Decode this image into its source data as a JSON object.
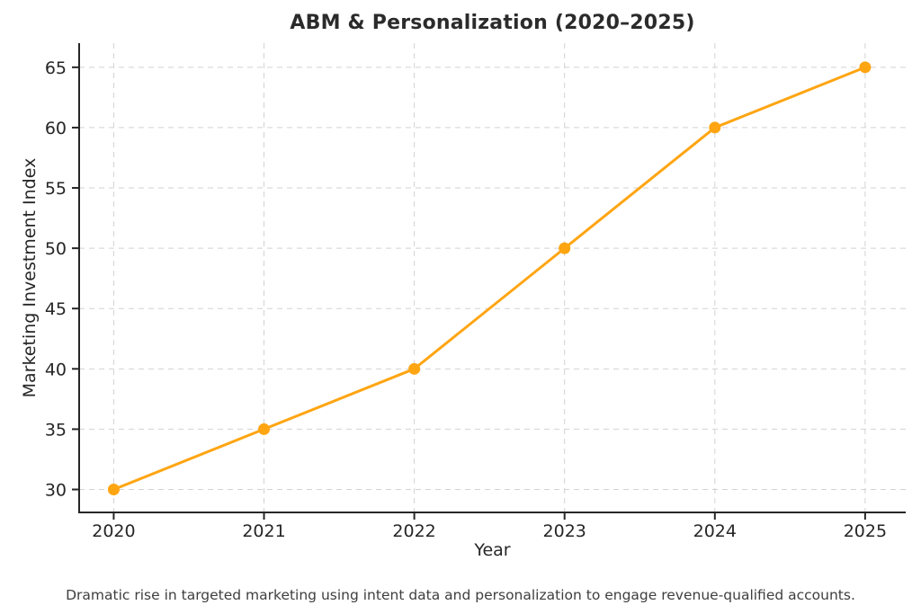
{
  "chart_data": {
    "type": "line",
    "title": "ABM & Personalization (2020–2025)",
    "xlabel": "Year",
    "ylabel": "Marketing Investment Index",
    "categories": [
      2020,
      2021,
      2022,
      2023,
      2024,
      2025
    ],
    "values": [
      30,
      35,
      40,
      50,
      60,
      65
    ],
    "yticks": [
      30,
      35,
      40,
      45,
      50,
      55,
      60,
      65
    ],
    "xlim": [
      2019.77,
      2025.27
    ],
    "ylim": [
      28.1,
      67.0
    ],
    "grid": "dashed",
    "legend_position": "none",
    "line_color": "#FFA512",
    "marker_color": "#FFA512",
    "grid_color": "#d2d2d2",
    "axis_color": "#262626",
    "caption": "Dramatic rise in targeted marketing using intent data and personalization to engage revenue-qualified accounts."
  }
}
